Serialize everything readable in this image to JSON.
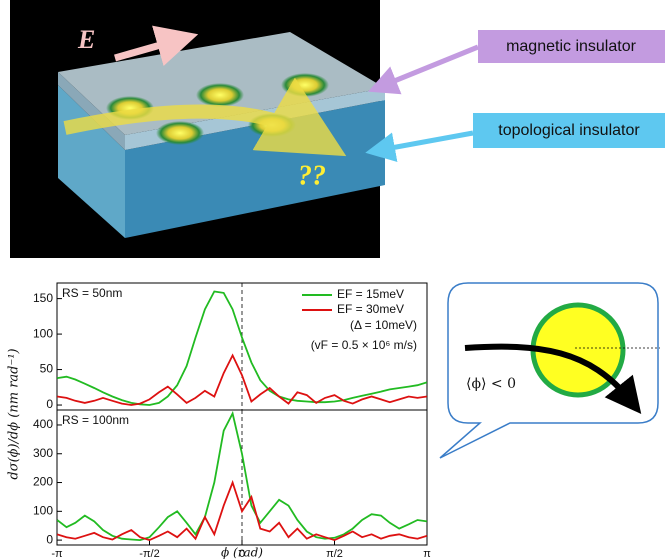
{
  "illustration": {
    "field_label": "E",
    "question": "??",
    "labels": [
      "magnetic insulator",
      "topological insulator"
    ]
  },
  "callout": {
    "text": "⟨ϕ⟩ < 0"
  },
  "chart_data": [
    {
      "type": "line",
      "ylabel": "dσ(ϕ)/dϕ (nm rad⁻¹)",
      "annotations": [
        "RS = 50nm",
        "(Δ = 10meV)",
        "(vF = 0.5 × 10⁶ m/s)"
      ],
      "legend": "upper right",
      "x": [
        -3.14,
        -2.98,
        -2.83,
        -2.67,
        -2.51,
        -2.36,
        -2.2,
        -2.04,
        -1.88,
        -1.73,
        -1.57,
        -1.41,
        -1.26,
        -1.1,
        -0.94,
        -0.79,
        -0.63,
        -0.47,
        -0.31,
        -0.16,
        0,
        0.16,
        0.31,
        0.47,
        0.63,
        0.79,
        0.94,
        1.1,
        1.26,
        1.41,
        1.57,
        1.73,
        1.88,
        2.04,
        2.2,
        2.36,
        2.51,
        2.67,
        2.83,
        2.98,
        3.14
      ],
      "series": [
        {
          "name": "EF = 15meV",
          "color": "#22bb22",
          "values": [
            38,
            40,
            36,
            30,
            24,
            18,
            12,
            7,
            3,
            1,
            0,
            3,
            12,
            28,
            55,
            95,
            135,
            160,
            158,
            135,
            95,
            60,
            35,
            20,
            12,
            8,
            6,
            5,
            4,
            4,
            5,
            7,
            10,
            13,
            16,
            19,
            22,
            24,
            26,
            28,
            32
          ]
        },
        {
          "name": "EF = 30meV",
          "color": "#dd1111",
          "values": [
            12,
            10,
            6,
            3,
            6,
            10,
            6,
            2,
            0,
            2,
            8,
            18,
            26,
            15,
            3,
            10,
            20,
            12,
            45,
            70,
            42,
            5,
            15,
            24,
            12,
            2,
            18,
            14,
            3,
            10,
            14,
            6,
            2,
            8,
            12,
            8,
            4,
            8,
            12,
            10,
            12
          ]
        }
      ],
      "xlim": [
        -3.1416,
        3.1416
      ],
      "ylim": [
        -7,
        172
      ],
      "yticks": [
        0,
        50,
        100,
        150
      ],
      "vline": 0
    },
    {
      "type": "line",
      "xlabel": "ϕ (rad)",
      "annotations": [
        "RS = 100nm"
      ],
      "x": [
        -3.14,
        -2.98,
        -2.83,
        -2.67,
        -2.51,
        -2.36,
        -2.2,
        -2.04,
        -1.88,
        -1.73,
        -1.57,
        -1.41,
        -1.26,
        -1.1,
        -0.94,
        -0.79,
        -0.63,
        -0.47,
        -0.31,
        -0.16,
        0,
        0.16,
        0.31,
        0.47,
        0.63,
        0.79,
        0.94,
        1.1,
        1.26,
        1.41,
        1.57,
        1.73,
        1.88,
        2.04,
        2.2,
        2.36,
        2.51,
        2.67,
        2.83,
        2.98,
        3.14
      ],
      "series": [
        {
          "name": "EF = 15meV",
          "color": "#22bb22",
          "values": [
            70,
            45,
            60,
            85,
            65,
            35,
            15,
            5,
            2,
            0,
            10,
            45,
            80,
            100,
            60,
            20,
            80,
            200,
            380,
            440,
            300,
            120,
            60,
            100,
            140,
            120,
            70,
            30,
            10,
            5,
            8,
            20,
            40,
            70,
            90,
            85,
            60,
            40,
            55,
            70,
            65
          ]
        },
        {
          "name": "EF = 30meV",
          "color": "#dd1111",
          "values": [
            20,
            10,
            5,
            15,
            25,
            10,
            2,
            20,
            35,
            10,
            0,
            15,
            30,
            10,
            40,
            5,
            80,
            20,
            120,
            200,
            100,
            150,
            40,
            30,
            60,
            10,
            40,
            5,
            20,
            10,
            0,
            15,
            30,
            10,
            20,
            5,
            15,
            20,
            10,
            5,
            15
          ]
        }
      ],
      "xlim": [
        -3.1416,
        3.1416
      ],
      "xticks": [
        {
          "value": -3.1416,
          "label": "-π"
        },
        {
          "value": -1.5708,
          "label": "-π/2"
        },
        {
          "value": 0,
          "label": "0"
        },
        {
          "value": 1.5708,
          "label": "π/2"
        },
        {
          "value": 3.1416,
          "label": "π"
        }
      ],
      "ylim": [
        -17,
        452
      ],
      "yticks": [
        0,
        100,
        200,
        300,
        400
      ],
      "vline": 0
    }
  ]
}
